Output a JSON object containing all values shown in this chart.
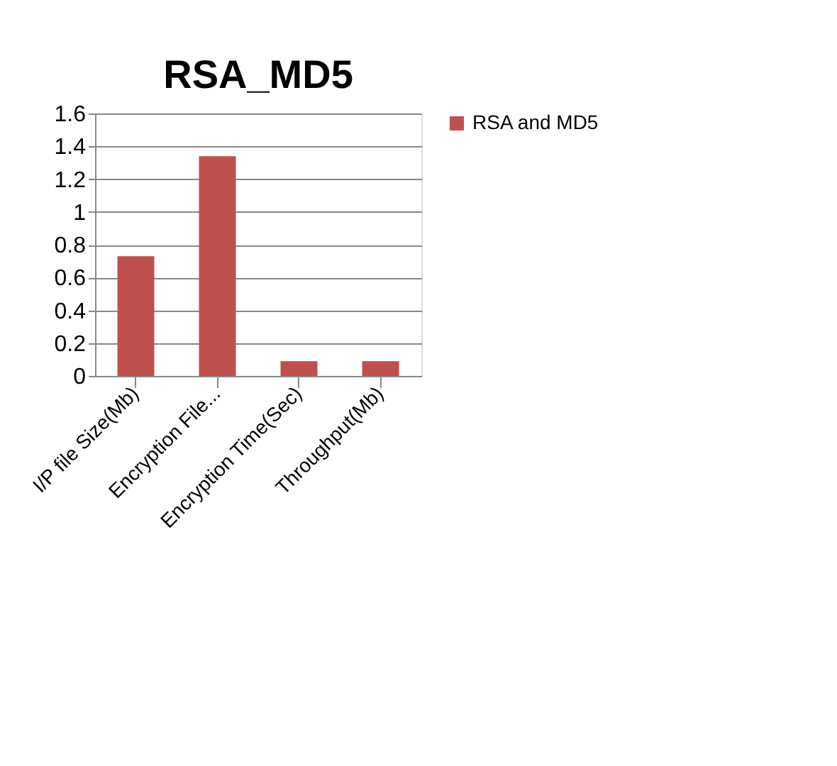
{
  "chart_data": {
    "type": "bar",
    "title": "RSA_MD5",
    "categories": [
      "I/P file Size(Mb)",
      "Encryption File...",
      "Encryption Time(Sec)",
      "Throughput(Mb)"
    ],
    "series": [
      {
        "name": "RSA and MD5",
        "color": "#c0504d",
        "values": [
          0.73,
          1.34,
          0.09,
          0.09
        ]
      }
    ],
    "ylim": [
      0,
      1.6
    ],
    "yticks": [
      0,
      0.2,
      0.4,
      0.6,
      0.8,
      1,
      1.2,
      1.4,
      1.6
    ],
    "grid": "y",
    "legend": "right"
  }
}
